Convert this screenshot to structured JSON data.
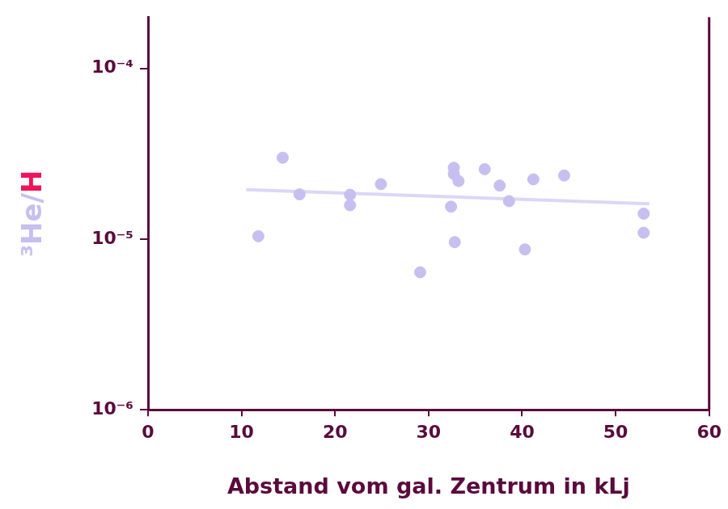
{
  "chart_data": {
    "type": "scatter",
    "x_label": "Abstand vom gal. Zentrum in kLj",
    "y_label": "³He/H",
    "x": [
      11.8,
      14.4,
      16.2,
      21.6,
      21.6,
      24.9,
      29.1,
      32.7,
      32.7,
      33.2,
      32.4,
      32.8,
      36.0,
      37.6,
      38.6,
      40.3,
      41.2,
      44.5,
      53.0,
      53.0
    ],
    "values": [
      1.04e-05,
      3e-05,
      1.83e-05,
      1.82e-05,
      1.58e-05,
      2.1e-05,
      6.4e-06,
      2.62e-05,
      2.41e-05,
      2.19e-05,
      1.55e-05,
      9.6e-06,
      2.57e-05,
      2.06e-05,
      1.67e-05,
      8.7e-06,
      2.24e-05,
      2.36e-05,
      1.41e-05,
      1.09e-05
    ],
    "color": "#c6bff0",
    "marker": "circle",
    "trend": {
      "x": [
        10.5,
        53.6
      ],
      "values": [
        1.95e-05,
        1.61e-05
      ],
      "color": "#dcd6f7",
      "line_style": "solid"
    },
    "xlim": [
      0,
      60
    ],
    "xticks": [
      0,
      10,
      20,
      30,
      40,
      50,
      60
    ],
    "ylim": [
      1e-06,
      0.0002
    ],
    "yticks": [
      {
        "value": 1e-06,
        "label": "10⁻⁶"
      },
      {
        "value": 1e-05,
        "label": "10⁻⁵"
      },
      {
        "value": 0.0001,
        "label": "10⁻⁴"
      }
    ],
    "log": "y",
    "grid": false
  }
}
